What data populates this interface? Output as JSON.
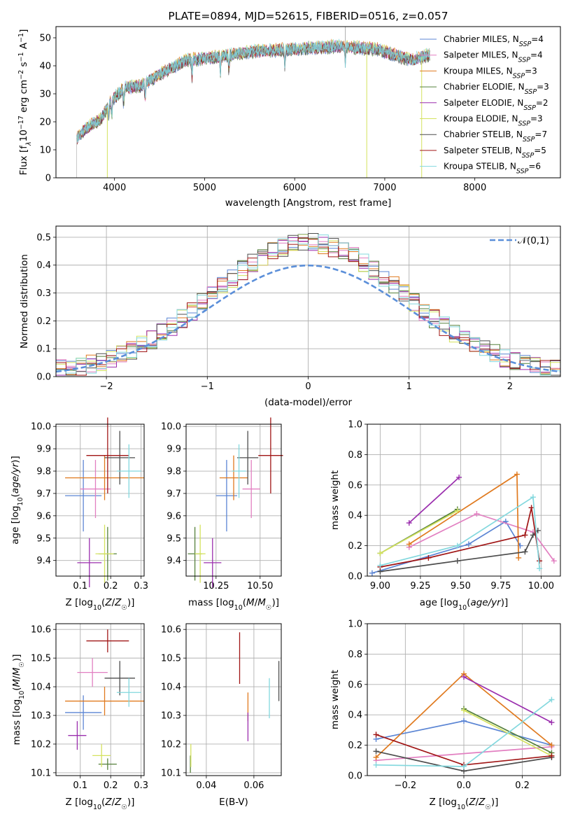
{
  "palette": {
    "Chabrier MILES": "#5b85d4",
    "Salpeter MILES": "#e27fc1",
    "Kroupa MILES": "#e07a1f",
    "Chabrier ELODIE": "#55803b",
    "Salpeter ELODIE": "#9b2fae",
    "Kroupa ELODIE": "#d4e25e",
    "Chabrier STELIB": "#4d4d4d",
    "Salpeter STELIB": "#a01515",
    "Kroupa STELIB": "#83d8de",
    "normal": "#5b8fd9",
    "spectrum_main": "#7fc8cf",
    "grid": "#b0b0b0"
  },
  "chart_data": [
    {
      "id": "spectrum",
      "type": "line",
      "title": "PLATE=0894, MJD=52615, FIBERID=0516, z=0.057",
      "xlabel": "wavelength [Angstrom, rest frame]",
      "ylabel": "Flux [f_λ10^-17 erg cm^-2 s^-1 A^-1]",
      "xlim": [
        3350,
        8950
      ],
      "ylim": [
        0,
        54
      ],
      "xticks": [
        "4000",
        "5000",
        "6000",
        "7000",
        "8000"
      ],
      "yticks": [
        "0",
        "10",
        "20",
        "30",
        "40",
        "50"
      ],
      "grid": false,
      "legend_position": "right",
      "legend": [
        {
          "name": "Chabrier MILES",
          "nssp": "4"
        },
        {
          "name": "Salpeter MILES",
          "nssp": "4"
        },
        {
          "name": "Kroupa MILES",
          "nssp": "3"
        },
        {
          "name": "Chabrier ELODIE",
          "nssp": "3"
        },
        {
          "name": "Salpeter ELODIE",
          "nssp": "2"
        },
        {
          "name": "Kroupa ELODIE",
          "nssp": "3"
        },
        {
          "name": "Chabrier STELIB",
          "nssp": "7"
        },
        {
          "name": "Salpeter STELIB",
          "nssp": "5"
        },
        {
          "name": "Kroupa STELIB",
          "nssp": "6"
        }
      ],
      "legend_subscript": "SSP",
      "continuum": {
        "x": [
          3580,
          3700,
          3850,
          3950,
          4100,
          4300,
          4500,
          4800,
          5100,
          5500,
          6000,
          6500,
          6900,
          7300,
          7500
        ],
        "y": [
          14,
          18,
          21,
          27,
          32,
          33,
          37,
          42,
          43,
          45,
          46,
          47,
          46,
          42,
          44
        ]
      },
      "absorption_dips_x": [
        3934,
        3969,
        4101,
        4340,
        4861,
        5175,
        5270,
        5890,
        6563
      ],
      "spikes_to_zero_x": [
        3920,
        6800,
        7410
      ],
      "line_start_x": 3580
    },
    {
      "id": "residuals",
      "type": "histogram",
      "xlabel": "(data-model)/error",
      "ylabel": "Normed distribution",
      "xlim": [
        -2.5,
        2.5
      ],
      "ylim": [
        0,
        0.54
      ],
      "xticks": [
        "−2",
        "−1",
        "0",
        "1",
        "2"
      ],
      "yticks": [
        "0.0",
        "0.1",
        "0.2",
        "0.3",
        "0.4",
        "0.5"
      ],
      "grid": true,
      "legend_position": "top-right",
      "legend_label": "𝒩(0,1)",
      "bin_width": 0.1,
      "bin_start": -2.5,
      "envelope_sigma": 1.0,
      "envelope_peak": 0.47
    },
    {
      "id": "age_vs_Z",
      "type": "errorbar",
      "xlabel": "Z [log10(Z/Z☉)]",
      "ylabel": "age [log10(age/yr)]",
      "xlim": [
        0.02,
        0.31
      ],
      "ylim": [
        9.33,
        10.01
      ],
      "xticks": [
        "0.1",
        "0.2",
        "0.3"
      ],
      "yticks": [
        "9.4",
        "9.5",
        "9.6",
        "9.7",
        "9.8",
        "9.9",
        "10.0"
      ],
      "grid": true,
      "points": [
        {
          "model": "Chabrier MILES",
          "x": 0.11,
          "y": 9.69,
          "xerr": 0.06,
          "yerr": 0.16
        },
        {
          "model": "Salpeter MILES",
          "x": 0.15,
          "y": 9.72,
          "xerr": 0.05,
          "yerr": 0.13
        },
        {
          "model": "Kroupa MILES",
          "x": 0.18,
          "y": 9.77,
          "xerr": 0.13,
          "yerr": 0.1
        },
        {
          "model": "Chabrier ELODIE",
          "x": 0.19,
          "y": 9.43,
          "xerr": 0.03,
          "yerr": 0.12
        },
        {
          "model": "Salpeter ELODIE",
          "x": 0.13,
          "y": 9.39,
          "xerr": 0.04,
          "yerr": 0.11
        },
        {
          "model": "Kroupa ELODIE",
          "x": 0.18,
          "y": 9.43,
          "xerr": 0.03,
          "yerr": 0.13
        },
        {
          "model": "Chabrier STELIB",
          "x": 0.23,
          "y": 9.86,
          "xerr": 0.05,
          "yerr": 0.12
        },
        {
          "model": "Salpeter STELIB",
          "x": 0.19,
          "y": 9.87,
          "xerr": 0.07,
          "yerr": 0.17
        },
        {
          "model": "Kroupa STELIB",
          "x": 0.26,
          "y": 9.8,
          "xerr": 0.04,
          "yerr": 0.12
        }
      ]
    },
    {
      "id": "age_vs_mass",
      "type": "errorbar",
      "xlabel": "mass [log10(M/M☉)]",
      "ylabel": "",
      "xlim": [
        10.08,
        10.62
      ],
      "ylim": [
        9.33,
        10.01
      ],
      "xticks": [
        "10.25",
        "10.50"
      ],
      "yticks": [
        "9.4",
        "9.5",
        "9.6",
        "9.7",
        "9.8",
        "9.9",
        "10.0"
      ],
      "grid": true,
      "points": [
        {
          "model": "Chabrier MILES",
          "x": 10.31,
          "y": 9.69,
          "xerr": 0.06,
          "yerr": 0.16
        },
        {
          "model": "Salpeter MILES",
          "x": 10.45,
          "y": 9.72,
          "xerr": 0.05,
          "yerr": 0.13
        },
        {
          "model": "Kroupa MILES",
          "x": 10.35,
          "y": 9.77,
          "xerr": 0.08,
          "yerr": 0.1
        },
        {
          "model": "Chabrier ELODIE",
          "x": 10.13,
          "y": 9.43,
          "xerr": 0.04,
          "yerr": 0.12
        },
        {
          "model": "Salpeter ELODIE",
          "x": 10.23,
          "y": 9.39,
          "xerr": 0.05,
          "yerr": 0.11
        },
        {
          "model": "Kroupa ELODIE",
          "x": 10.16,
          "y": 9.43,
          "xerr": 0.03,
          "yerr": 0.13
        },
        {
          "model": "Chabrier STELIB",
          "x": 10.43,
          "y": 9.86,
          "xerr": 0.06,
          "yerr": 0.12
        },
        {
          "model": "Salpeter STELIB",
          "x": 10.56,
          "y": 9.87,
          "xerr": 0.07,
          "yerr": 0.17
        },
        {
          "model": "Kroupa STELIB",
          "x": 10.38,
          "y": 9.8,
          "xerr": 0.04,
          "yerr": 0.12
        }
      ]
    },
    {
      "id": "weight_vs_age",
      "type": "line",
      "xlabel": "age [log10(age/yr)]",
      "ylabel": "mass weight",
      "xlim": [
        8.92,
        10.12
      ],
      "ylim": [
        0,
        1
      ],
      "xticks": [
        "9.00",
        "9.25",
        "9.50",
        "9.75",
        "10.00"
      ],
      "yticks": [
        "0.0",
        "0.2",
        "0.4",
        "0.6",
        "0.8",
        "1.0"
      ],
      "grid": true,
      "series": [
        {
          "model": "Chabrier MILES",
          "x": [
            8.95,
            9.55,
            9.78,
            9.87
          ],
          "y": [
            0.02,
            0.21,
            0.36,
            0.2
          ]
        },
        {
          "model": "Salpeter MILES",
          "x": [
            9.18,
            9.6,
            9.95,
            10.08
          ],
          "y": [
            0.19,
            0.41,
            0.29,
            0.1
          ]
        },
        {
          "model": "Kroupa MILES",
          "x": [
            9.18,
            9.85,
            9.86
          ],
          "y": [
            0.21,
            0.67,
            0.12
          ]
        },
        {
          "model": "Chabrier ELODIE",
          "x": [
            9.0,
            9.48
          ],
          "y": [
            0.15,
            0.44
          ]
        },
        {
          "model": "Salpeter ELODIE",
          "x": [
            9.18,
            9.49
          ],
          "y": [
            0.35,
            0.65
          ]
        },
        {
          "model": "Kroupa ELODIE",
          "x": [
            9.0,
            9.48
          ],
          "y": [
            0.15,
            0.43
          ]
        },
        {
          "model": "Chabrier STELIB",
          "x": [
            9.0,
            9.48,
            9.9,
            9.95,
            9.98
          ],
          "y": [
            0.03,
            0.1,
            0.16,
            0.27,
            0.3
          ]
        },
        {
          "model": "Salpeter STELIB",
          "x": [
            9.0,
            9.3,
            9.9,
            9.94,
            9.99
          ],
          "y": [
            0.06,
            0.12,
            0.27,
            0.45,
            0.1
          ]
        },
        {
          "model": "Kroupa STELIB",
          "x": [
            9.0,
            9.48,
            9.95,
            9.99
          ],
          "y": [
            0.07,
            0.2,
            0.52,
            0.05
          ]
        }
      ]
    },
    {
      "id": "mass_vs_Z",
      "type": "errorbar",
      "xlabel": "Z [log10(Z/Z☉)]",
      "ylabel": "mass [log10(M/M☉)]",
      "xlim": [
        0.02,
        0.31
      ],
      "ylim": [
        10.09,
        10.62
      ],
      "xticks": [
        "0.1",
        "0.2",
        "0.3"
      ],
      "yticks": [
        "10.1",
        "10.2",
        "10.3",
        "10.4",
        "10.5",
        "10.6"
      ],
      "grid": true,
      "points": [
        {
          "model": "Chabrier MILES",
          "x": 0.11,
          "y": 10.31,
          "xerr": 0.06,
          "yerr": 0.06
        },
        {
          "model": "Salpeter MILES",
          "x": 0.14,
          "y": 10.45,
          "xerr": 0.05,
          "yerr": 0.05
        },
        {
          "model": "Kroupa MILES",
          "x": 0.18,
          "y": 10.35,
          "xerr": 0.13,
          "yerr": 0.05
        },
        {
          "model": "Chabrier ELODIE",
          "x": 0.19,
          "y": 10.13,
          "xerr": 0.03,
          "yerr": 0.02
        },
        {
          "model": "Salpeter ELODIE",
          "x": 0.09,
          "y": 10.23,
          "xerr": 0.03,
          "yerr": 0.05
        },
        {
          "model": "Kroupa ELODIE",
          "x": 0.17,
          "y": 10.16,
          "xerr": 0.03,
          "yerr": 0.04
        },
        {
          "model": "Chabrier STELIB",
          "x": 0.23,
          "y": 10.43,
          "xerr": 0.05,
          "yerr": 0.06
        },
        {
          "model": "Salpeter STELIB",
          "x": 0.19,
          "y": 10.56,
          "xerr": 0.07,
          "yerr": 0.04
        },
        {
          "model": "Kroupa STELIB",
          "x": 0.26,
          "y": 10.38,
          "xerr": 0.04,
          "yerr": 0.05
        }
      ]
    },
    {
      "id": "mass_vs_EBV",
      "type": "errorbar",
      "xlabel": "E(B-V)",
      "ylabel": "",
      "xlim": [
        0.0315,
        0.0715
      ],
      "ylim": [
        10.09,
        10.62
      ],
      "xticks": [
        "0.04",
        "0.06"
      ],
      "yticks": [
        "10.1",
        "10.2",
        "10.3",
        "10.4",
        "10.5",
        "10.6"
      ],
      "grid": true,
      "points": [
        {
          "model": "Chabrier ELODIE",
          "x": 0.0333,
          "y": 10.13,
          "xerr": 0.0,
          "yerr": 0.03
        },
        {
          "model": "Kroupa ELODIE",
          "x": 0.0335,
          "y": 10.16,
          "xerr": 0.0,
          "yerr": 0.04
        },
        {
          "model": "Salpeter STELIB",
          "x": 0.054,
          "y": 10.5,
          "xerr": 0.0,
          "yerr": 0.09
        },
        {
          "model": "Kroupa MILES",
          "x": 0.0575,
          "y": 10.33,
          "xerr": 0.0,
          "yerr": 0.05
        },
        {
          "model": "Salpeter ELODIE",
          "x": 0.0575,
          "y": 10.26,
          "xerr": 0.0,
          "yerr": 0.05
        },
        {
          "model": "Kroupa STELIB",
          "x": 0.0665,
          "y": 10.36,
          "xerr": 0.0,
          "yerr": 0.07
        },
        {
          "model": "Chabrier STELIB",
          "x": 0.0705,
          "y": 10.42,
          "xerr": 0.0,
          "yerr": 0.07
        }
      ]
    },
    {
      "id": "weight_vs_Z",
      "type": "line",
      "xlabel": "Z [log10(Z/Z☉)]",
      "ylabel": "mass weight",
      "xlim": [
        -0.33,
        0.33
      ],
      "ylim": [
        0,
        1
      ],
      "xticks": [
        "−0.2",
        "0.0",
        "0.2"
      ],
      "yticks": [
        "0.0",
        "0.2",
        "0.4",
        "0.6",
        "0.8",
        "1.0"
      ],
      "grid": true,
      "series": [
        {
          "model": "Chabrier MILES",
          "x": [
            -0.3,
            0.0,
            0.3
          ],
          "y": [
            0.24,
            0.36,
            0.2
          ]
        },
        {
          "model": "Salpeter MILES",
          "x": [
            -0.3,
            0.3
          ],
          "y": [
            0.1,
            0.19
          ]
        },
        {
          "model": "Kroupa MILES",
          "x": [
            -0.3,
            0.0,
            0.3
          ],
          "y": [
            0.12,
            0.67,
            0.2
          ]
        },
        {
          "model": "Chabrier ELODIE",
          "x": [
            0.0,
            0.3
          ],
          "y": [
            0.44,
            0.15
          ]
        },
        {
          "model": "Salpeter ELODIE",
          "x": [
            0.0,
            0.3
          ],
          "y": [
            0.65,
            0.35
          ]
        },
        {
          "model": "Kroupa ELODIE",
          "x": [
            0.0,
            0.3
          ],
          "y": [
            0.43,
            0.13
          ]
        },
        {
          "model": "Chabrier STELIB",
          "x": [
            -0.3,
            0.0,
            0.3
          ],
          "y": [
            0.16,
            0.03,
            0.12
          ]
        },
        {
          "model": "Salpeter STELIB",
          "x": [
            -0.3,
            0.0,
            0.3
          ],
          "y": [
            0.27,
            0.07,
            0.13
          ]
        },
        {
          "model": "Kroupa STELIB",
          "x": [
            -0.3,
            0.0,
            0.3
          ],
          "y": [
            0.07,
            0.06,
            0.5
          ]
        }
      ]
    }
  ]
}
